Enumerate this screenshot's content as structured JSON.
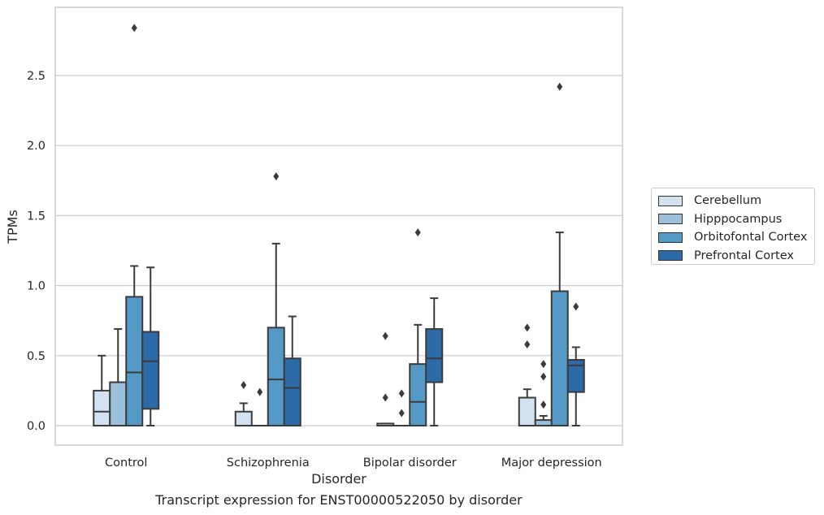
{
  "chart_data": {
    "type": "box",
    "categories": [
      "Control",
      "Schizophrenia",
      "Bipolar disorder",
      "Major depression"
    ],
    "xlabel": "Disorder",
    "ylabel": "TPMs",
    "ylim": [
      -0.14,
      3.0
    ],
    "yticks": [
      0.0,
      0.5,
      1.0,
      1.5,
      2.0,
      2.5
    ],
    "ytick_labels": [
      "0.0",
      "0.5",
      "1.0",
      "1.5",
      "2.0",
      "2.5"
    ],
    "grid": "horizontal",
    "legend_position": "right",
    "series": [
      {
        "name": "Cerebellum",
        "color": "#d2e2f1",
        "boxes": [
          {
            "whisker_low": 0.0,
            "q1": 0.0,
            "median": 0.1,
            "q3": 0.25,
            "whisker_high": 0.5,
            "outliers": []
          },
          {
            "whisker_low": 0.0,
            "q1": 0.0,
            "median": 0.0,
            "q3": 0.1,
            "whisker_high": 0.16,
            "outliers": [
              0.29
            ]
          },
          {
            "whisker_low": 0.0,
            "q1": 0.0,
            "median": 0.0,
            "q3": 0.015,
            "whisker_high": 0.015,
            "outliers": [
              0.64,
              0.2
            ]
          },
          {
            "whisker_low": 0.0,
            "q1": 0.0,
            "median": 0.0,
            "q3": 0.2,
            "whisker_high": 0.26,
            "outliers": [
              0.7,
              0.58
            ]
          }
        ]
      },
      {
        "name": "Hipppocampus",
        "color": "#9cc0dc",
        "boxes": [
          {
            "whisker_low": 0.0,
            "q1": 0.0,
            "median": 0.0,
            "q3": 0.31,
            "whisker_high": 0.69,
            "outliers": []
          },
          {
            "whisker_low": 0.0,
            "q1": 0.0,
            "median": 0.0,
            "q3": 0.0,
            "whisker_high": 0.0,
            "outliers": [
              0.24
            ]
          },
          {
            "whisker_low": 0.0,
            "q1": 0.0,
            "median": 0.0,
            "q3": 0.0,
            "whisker_high": 0.0,
            "outliers": [
              0.23,
              0.09
            ]
          },
          {
            "whisker_low": 0.0,
            "q1": 0.0,
            "median": 0.0,
            "q3": 0.04,
            "whisker_high": 0.07,
            "outliers": [
              0.44,
              0.35,
              0.15
            ]
          }
        ]
      },
      {
        "name": "Orbitofontal Cortex",
        "color": "#5599c6",
        "boxes": [
          {
            "whisker_low": 0.0,
            "q1": 0.0,
            "median": 0.38,
            "q3": 0.92,
            "whisker_high": 1.14,
            "outliers": [
              2.84
            ]
          },
          {
            "whisker_low": 0.0,
            "q1": 0.0,
            "median": 0.33,
            "q3": 0.7,
            "whisker_high": 1.3,
            "outliers": [
              1.78
            ]
          },
          {
            "whisker_low": 0.0,
            "q1": 0.0,
            "median": 0.17,
            "q3": 0.44,
            "whisker_high": 0.72,
            "outliers": [
              1.38
            ]
          },
          {
            "whisker_low": 0.0,
            "q1": 0.0,
            "median": 0.0,
            "q3": 0.96,
            "whisker_high": 1.38,
            "outliers": [
              2.42
            ]
          }
        ]
      },
      {
        "name": "Prefrontal Cortex",
        "color": "#2d6ba8",
        "boxes": [
          {
            "whisker_low": 0.0,
            "q1": 0.12,
            "median": 0.46,
            "q3": 0.67,
            "whisker_high": 1.13,
            "outliers": []
          },
          {
            "whisker_low": 0.0,
            "q1": 0.0,
            "median": 0.27,
            "q3": 0.48,
            "whisker_high": 0.78,
            "outliers": []
          },
          {
            "whisker_low": 0.0,
            "q1": 0.31,
            "median": 0.48,
            "q3": 0.69,
            "whisker_high": 0.91,
            "outliers": []
          },
          {
            "whisker_low": 0.0,
            "q1": 0.24,
            "median": 0.43,
            "q3": 0.47,
            "whisker_high": 0.56,
            "outliers": [
              0.85
            ]
          }
        ]
      }
    ]
  },
  "caption": "Transcript expression for ENST00000522050 by disorder"
}
